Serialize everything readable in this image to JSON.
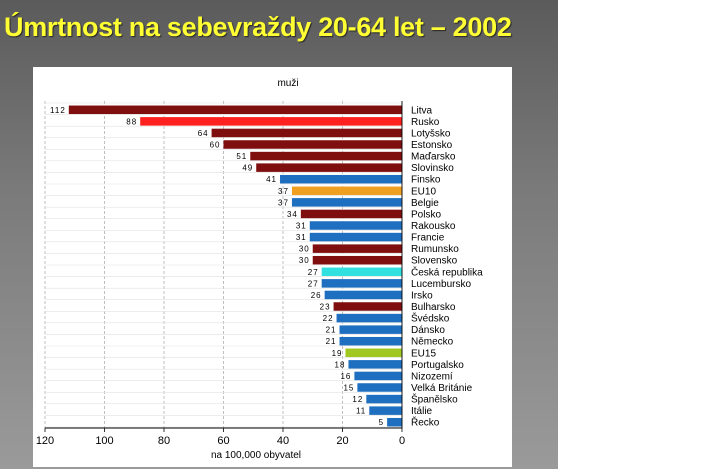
{
  "slide": {
    "title": "Úmrtnost na sebevraždy 20-64 let – 2002",
    "colors": {
      "title": "#ffff33",
      "background": "#6e6e6e"
    }
  },
  "chart_data": {
    "type": "bar",
    "orientation": "horizontal",
    "title": "muži",
    "xlabel": "na 100,000 obyvatel",
    "ylabel": "",
    "xlim": [
      0,
      120
    ],
    "x_reversed": true,
    "xticks": [
      120,
      100,
      80,
      60,
      40,
      20,
      0
    ],
    "grid": "vertical dashed",
    "categories": [
      "Litva",
      "Rusko",
      "Lotyšsko",
      "Estonsko",
      "Maďarsko",
      "Slovinsko",
      "Finsko",
      "EU10",
      "Belgie",
      "Polsko",
      "Rakousko",
      "Francie",
      "Rumunsko",
      "Slovensko",
      "Česká republika",
      "Lucembursko",
      "Irsko",
      "Bulharsko",
      "Švédsko",
      "Dánsko",
      "Německo",
      "EU15",
      "Portugalsko",
      "Nizozemí",
      "Velká Británie",
      "Španělsko",
      "Itálie",
      "Řecko"
    ],
    "values": [
      112,
      88,
      64,
      60,
      51,
      49,
      41,
      37,
      37,
      34,
      31,
      31,
      30,
      30,
      27,
      27,
      26,
      23,
      22,
      21,
      21,
      19,
      18,
      16,
      15,
      12,
      11,
      5
    ],
    "colors": [
      "#7f0f0f",
      "#ff2020",
      "#7f0f0f",
      "#7f0f0f",
      "#7f0f0f",
      "#7f0f0f",
      "#1f6fc0",
      "#f0a020",
      "#1f6fc0",
      "#7f0f0f",
      "#1f6fc0",
      "#1f6fc0",
      "#7f0f0f",
      "#7f0f0f",
      "#33e0e0",
      "#1f6fc0",
      "#1f6fc0",
      "#7f0f0f",
      "#1f6fc0",
      "#1f6fc0",
      "#1f6fc0",
      "#a0c820",
      "#1f6fc0",
      "#1f6fc0",
      "#1f6fc0",
      "#1f6fc0",
      "#1f6fc0",
      "#1f6fc0"
    ]
  }
}
